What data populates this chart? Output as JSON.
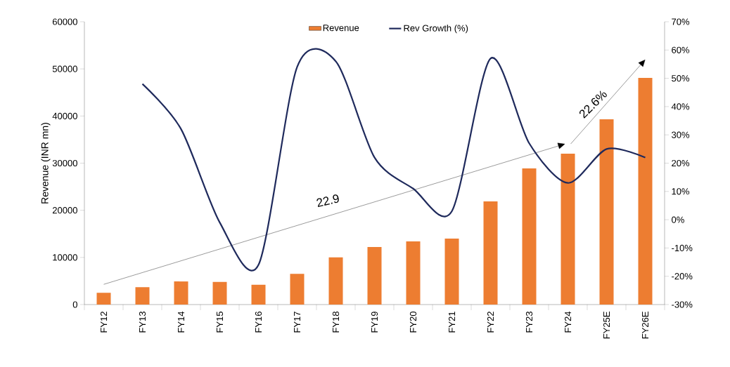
{
  "chart_data": {
    "type": "bar",
    "ylabel": "Revenue (INR mn)",
    "categories": [
      "FY12",
      "FY13",
      "FY14",
      "FY15",
      "FY16",
      "FY17",
      "FY18",
      "FY19",
      "FY20",
      "FY21",
      "FY22",
      "FY23",
      "FY24",
      "FY25E",
      "FY26E"
    ],
    "series": [
      {
        "name": "Revenue",
        "color": "#ed7d31",
        "values": [
          2500,
          3700,
          4900,
          4800,
          4200,
          6500,
          10000,
          12200,
          13400,
          14000,
          21900,
          28900,
          32000,
          39300,
          48100
        ]
      },
      {
        "name": "Rev Growth (%)",
        "type": "line",
        "axis": "y2",
        "color": "#1f2a5c",
        "values": [
          null,
          48,
          32,
          -1,
          -16,
          54,
          56,
          22,
          11,
          3,
          57,
          27,
          13,
          25,
          22
        ]
      }
    ],
    "ylim": [
      0,
      60000
    ],
    "yticks": [
      0,
      10000,
      20000,
      30000,
      40000,
      50000,
      60000
    ],
    "y2lim": [
      -30,
      70
    ],
    "y2ticks": [
      {
        "value": -30,
        "label": "-30%"
      },
      {
        "value": -20,
        "label": "-20%"
      },
      {
        "value": -10,
        "label": "-10%"
      },
      {
        "value": 0,
        "label": "0%"
      },
      {
        "value": 10,
        "label": "10%"
      },
      {
        "value": 20,
        "label": "20%"
      },
      {
        "value": 30,
        "label": "30%"
      },
      {
        "value": 40,
        "label": "40%"
      },
      {
        "value": 50,
        "label": "50%"
      },
      {
        "value": 60,
        "label": "60%"
      },
      {
        "value": 70,
        "label": "70%"
      }
    ],
    "annotations": [
      "22.9",
      "22.6%"
    ],
    "legend": "top",
    "grid": false
  }
}
